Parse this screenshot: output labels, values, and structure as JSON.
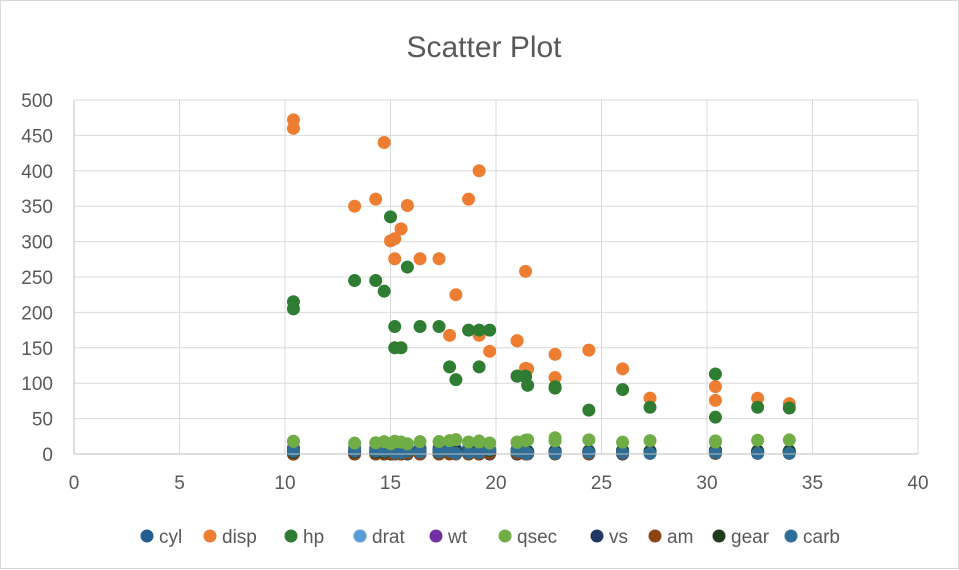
{
  "chart_data": {
    "type": "scatter",
    "title": "Scatter Plot",
    "xlabel": "",
    "ylabel": "",
    "xlim": [
      0,
      40
    ],
    "ylim": [
      0,
      500
    ],
    "x_ticks": [
      0,
      5,
      10,
      15,
      20,
      25,
      30,
      35,
      40
    ],
    "y_ticks": [
      0,
      50,
      100,
      150,
      200,
      250,
      300,
      350,
      400,
      450,
      500
    ],
    "grid": true,
    "legend_position": "bottom",
    "x": [
      21,
      21,
      22.8,
      21.4,
      18.7,
      18.1,
      14.3,
      24.4,
      22.8,
      19.2,
      17.8,
      16.4,
      17.3,
      15.2,
      10.4,
      10.4,
      14.7,
      32.4,
      30.4,
      33.9,
      21.5,
      15.5,
      15.2,
      13.3,
      19.2,
      27.3,
      26,
      30.4,
      15.8,
      19.7,
      15,
      21.4
    ],
    "series": [
      {
        "name": "cyl",
        "color": "#255e91",
        "values": [
          6,
          6,
          4,
          6,
          8,
          6,
          8,
          4,
          4,
          6,
          6,
          8,
          8,
          8,
          8,
          8,
          8,
          4,
          4,
          4,
          4,
          8,
          8,
          8,
          8,
          4,
          4,
          4,
          8,
          6,
          8,
          4
        ]
      },
      {
        "name": "disp",
        "color": "#ed7d31",
        "values": [
          160,
          160,
          108,
          258,
          360,
          225,
          360,
          146.7,
          140.8,
          167.6,
          167.6,
          275.8,
          275.8,
          275.8,
          472,
          460,
          440,
          78.7,
          75.7,
          71.1,
          120.1,
          318,
          304,
          350,
          400,
          79,
          120.3,
          95.1,
          351,
          145,
          301,
          121
        ]
      },
      {
        "name": "hp",
        "color": "#2e7d32",
        "values": [
          110,
          110,
          93,
          110,
          175,
          105,
          245,
          62,
          95,
          123,
          123,
          180,
          180,
          180,
          205,
          215,
          230,
          66,
          52,
          65,
          97,
          150,
          150,
          245,
          175,
          66,
          91,
          113,
          264,
          175,
          335,
          109
        ]
      },
      {
        "name": "drat",
        "color": "#5b9bd5",
        "values": [
          3.9,
          3.9,
          3.85,
          3.08,
          3.15,
          2.76,
          3.21,
          3.69,
          3.92,
          3.92,
          3.92,
          3.07,
          3.07,
          3.07,
          2.93,
          3,
          3.23,
          4.08,
          4.93,
          4.22,
          3.7,
          2.76,
          3.15,
          3.73,
          3.08,
          4.08,
          4.43,
          3.77,
          4.22,
          3.62,
          3.54,
          4.11
        ]
      },
      {
        "name": "wt",
        "color": "#7030a0",
        "values": [
          2.62,
          2.875,
          2.32,
          3.215,
          3.44,
          3.46,
          3.57,
          3.19,
          3.15,
          3.44,
          3.44,
          4.07,
          3.73,
          3.78,
          5.25,
          5.424,
          5.345,
          2.2,
          1.615,
          1.835,
          2.465,
          3.52,
          3.435,
          3.84,
          3.845,
          1.935,
          2.14,
          1.513,
          3.17,
          2.77,
          3.57,
          2.78
        ]
      },
      {
        "name": "qsec",
        "color": "#70ad47",
        "values": [
          16.46,
          17.02,
          18.61,
          19.44,
          17.02,
          20.22,
          15.84,
          20,
          22.9,
          18.3,
          18.9,
          17.4,
          17.6,
          18,
          17.98,
          17.82,
          17.42,
          19.47,
          18.52,
          19.9,
          20.01,
          16.87,
          17.3,
          15.41,
          17.05,
          18.9,
          16.7,
          16.9,
          14.5,
          15.5,
          14.6,
          18.6
        ]
      },
      {
        "name": "vs",
        "color": "#1f3864",
        "values": [
          0,
          0,
          1,
          1,
          0,
          1,
          0,
          1,
          1,
          1,
          1,
          0,
          0,
          0,
          0,
          0,
          0,
          1,
          1,
          1,
          1,
          0,
          0,
          0,
          0,
          1,
          0,
          1,
          0,
          0,
          0,
          1
        ]
      },
      {
        "name": "am",
        "color": "#8b4513",
        "values": [
          1,
          1,
          1,
          0,
          0,
          0,
          0,
          0,
          0,
          0,
          0,
          0,
          0,
          0,
          0,
          0,
          0,
          1,
          1,
          1,
          0,
          0,
          0,
          0,
          0,
          1,
          1,
          1,
          1,
          1,
          1,
          1
        ]
      },
      {
        "name": "gear",
        "color": "#1b3d1b",
        "values": [
          4,
          4,
          4,
          3,
          3,
          3,
          3,
          4,
          4,
          4,
          4,
          3,
          3,
          3,
          3,
          3,
          3,
          4,
          4,
          4,
          3,
          3,
          3,
          3,
          3,
          4,
          5,
          5,
          5,
          5,
          5,
          4
        ]
      },
      {
        "name": "carb",
        "color": "#2e6e96",
        "values": [
          4,
          4,
          1,
          1,
          2,
          1,
          4,
          2,
          2,
          4,
          4,
          3,
          3,
          3,
          4,
          4,
          4,
          1,
          2,
          1,
          1,
          2,
          2,
          4,
          2,
          1,
          2,
          2,
          4,
          6,
          8,
          2
        ]
      }
    ]
  }
}
